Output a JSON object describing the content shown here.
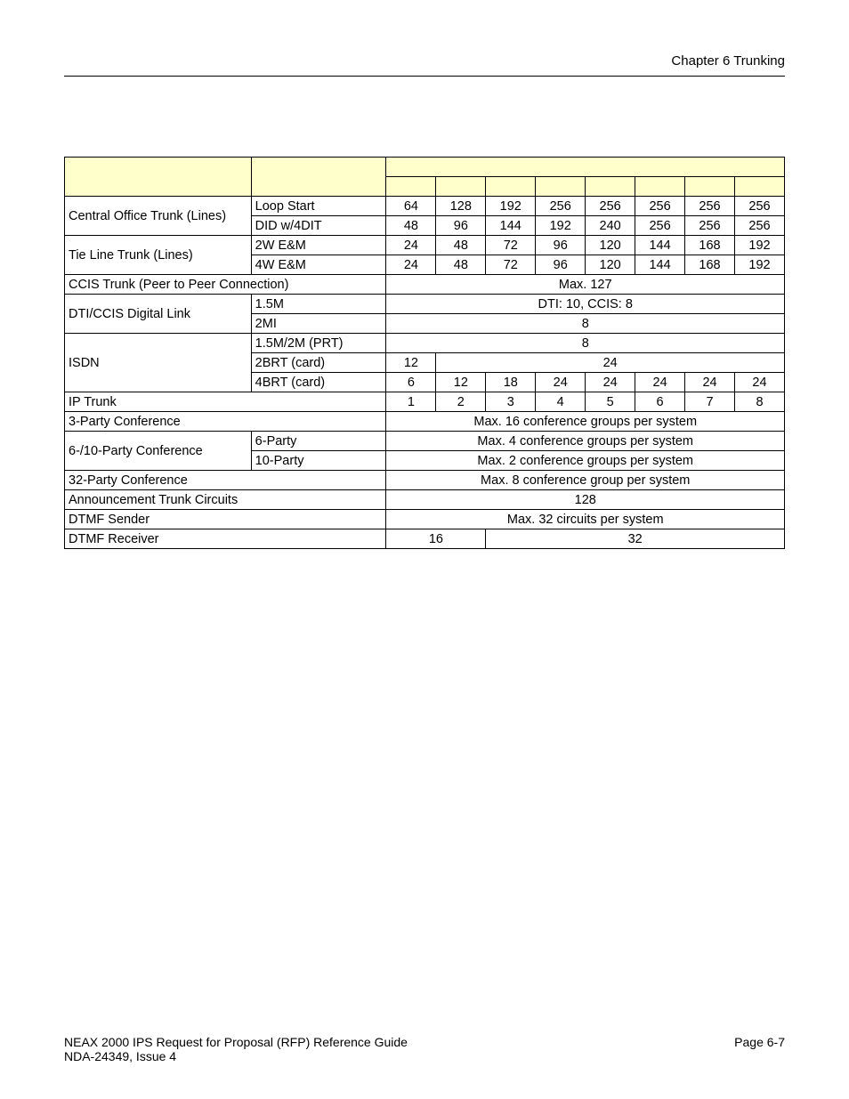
{
  "header": {
    "chapter": "Chapter 6   Trunking"
  },
  "table": {
    "rows": {
      "cot": {
        "label": "Central Office Trunk (Lines)"
      },
      "cot_loop": {
        "sub": "Loop Start",
        "v": [
          "64",
          "128",
          "192",
          "256",
          "256",
          "256",
          "256",
          "256"
        ]
      },
      "cot_did": {
        "sub": "DID w/4DIT",
        "v": [
          "48",
          "96",
          "144",
          "192",
          "240",
          "256",
          "256",
          "256"
        ]
      },
      "tie": {
        "label": "Tie Line Trunk (Lines)"
      },
      "tie_2w": {
        "sub": "2W E&M",
        "v": [
          "24",
          "48",
          "72",
          "96",
          "120",
          "144",
          "168",
          "192"
        ]
      },
      "tie_4w": {
        "sub": "4W E&M",
        "v": [
          "24",
          "48",
          "72",
          "96",
          "120",
          "144",
          "168",
          "192"
        ]
      },
      "ccis": {
        "label": "CCIS Trunk  (Peer to Peer Connection)",
        "span": "Max. 127"
      },
      "dti": {
        "label": "DTI/CCIS Digital Link"
      },
      "dti_15": {
        "sub": "1.5M",
        "span": "DTI: 10, CCIS: 8"
      },
      "dti_2m": {
        "sub": "2MI",
        "span": "8"
      },
      "isdn": {
        "label": "ISDN"
      },
      "isdn_prt": {
        "sub": "1.5M/2M (PRT)",
        "span": "8"
      },
      "isdn_2brt": {
        "sub": "2BRT (card)",
        "first": "12",
        "rest": "24"
      },
      "isdn_4brt": {
        "sub": "4BRT (card)",
        "v": [
          "6",
          "12",
          "18",
          "24",
          "24",
          "24",
          "24",
          "24"
        ]
      },
      "ip": {
        "label": "IP Trunk",
        "v": [
          "1",
          "2",
          "3",
          "4",
          "5",
          "6",
          "7",
          "8"
        ]
      },
      "conf3": {
        "label": "3-Party Conference",
        "span": "Max. 16 conference groups per system"
      },
      "conf610": {
        "label": "6-/10-Party Conference"
      },
      "conf6": {
        "sub": "6-Party",
        "span": "Max. 4 conference groups per system"
      },
      "conf10": {
        "sub": "10-Party",
        "span": "Max. 2 conference groups per system"
      },
      "conf32": {
        "label": "32-Party Conference",
        "span": "Max. 8 conference group per system"
      },
      "ann": {
        "label": "Announcement Trunk Circuits",
        "span": "128"
      },
      "dtmfs": {
        "label": "DTMF Sender",
        "span": "Max. 32 circuits per system"
      },
      "dtmfr": {
        "label": "DTMF Receiver",
        "left2": "16",
        "right6": "32"
      }
    }
  },
  "footer": {
    "title": "NEAX 2000 IPS Request for Proposal (RFP) Reference Guide",
    "page": "Page 6-7",
    "issue": "NDA-24349, Issue 4"
  },
  "colors": {
    "header_bg": "#ffffcc",
    "border": "#000000",
    "text": "#000000",
    "bg": "#ffffff"
  }
}
